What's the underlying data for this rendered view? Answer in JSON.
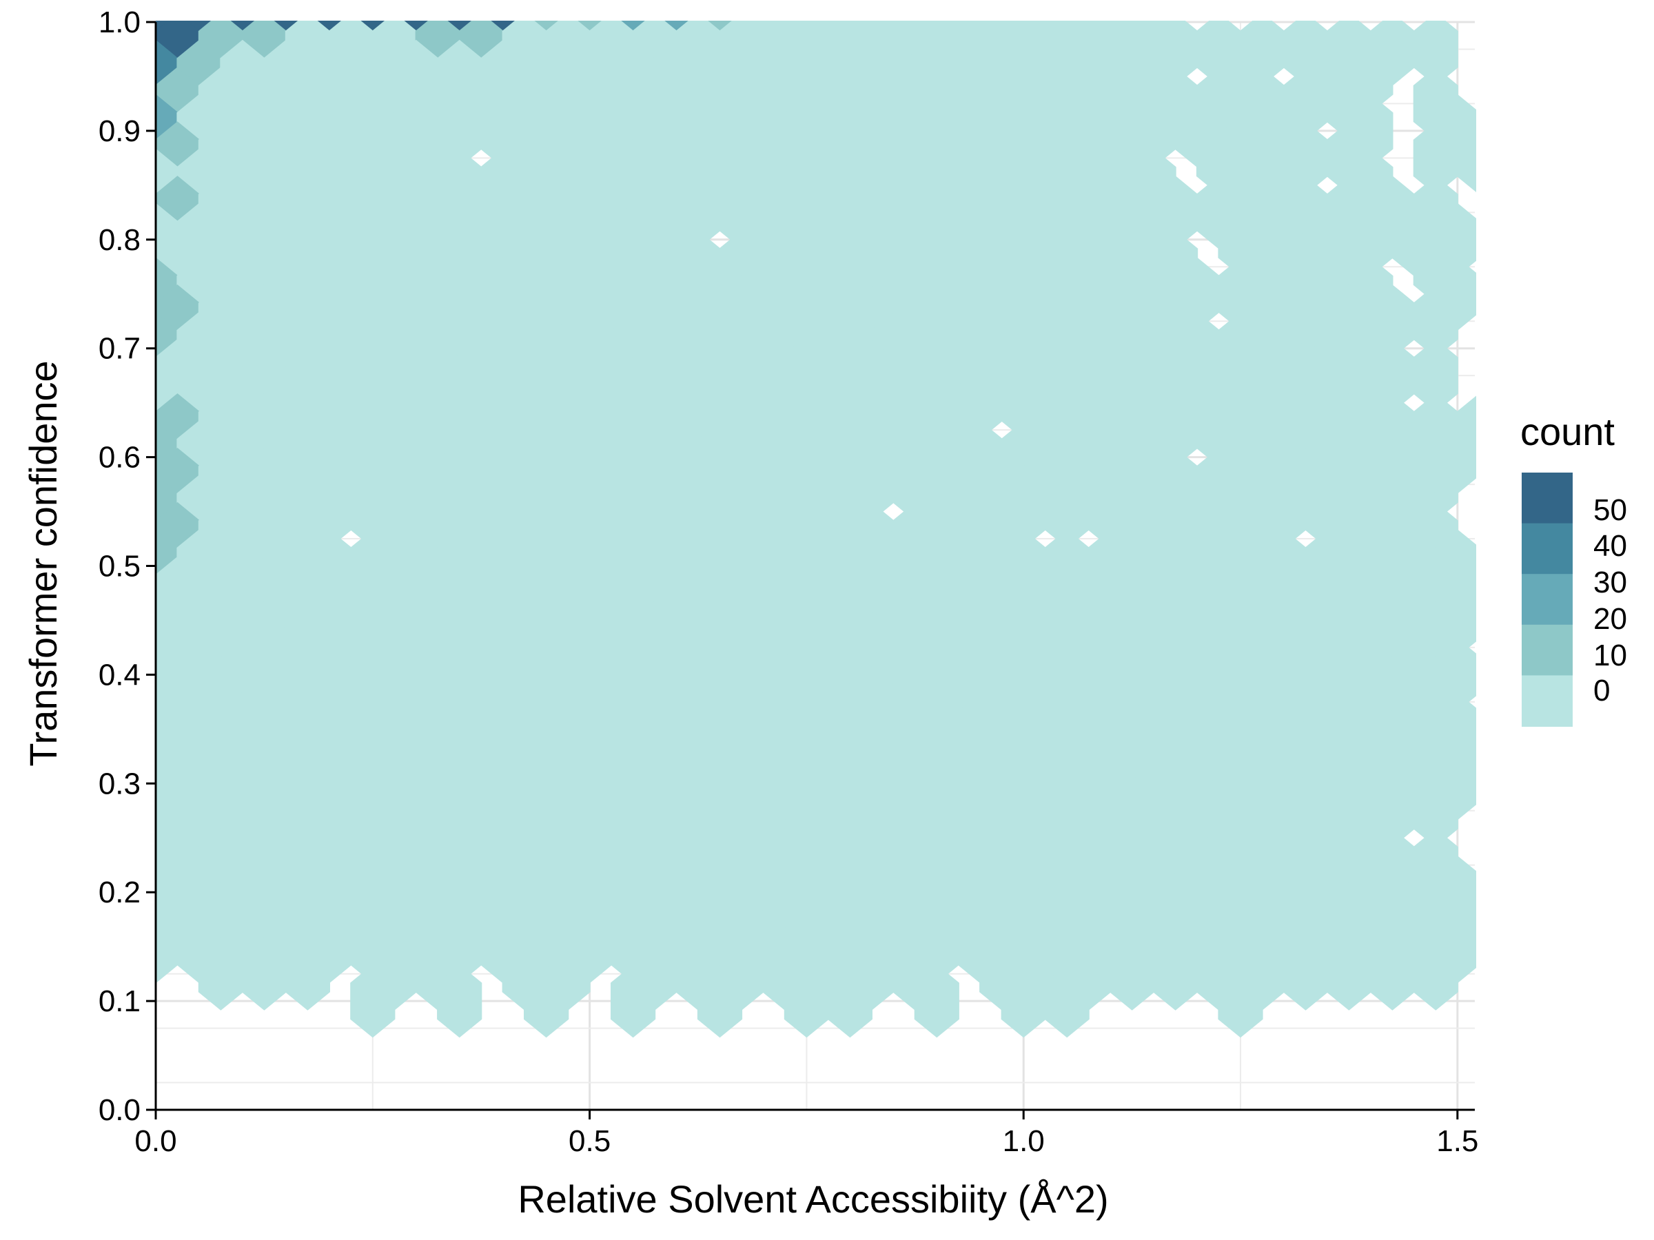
{
  "chart_data": {
    "type": "hexbin",
    "title": "",
    "xlabel": "Relative Solvent Accessibiity (Å^2)",
    "ylabel": "Transformer confidence",
    "xlim": [
      0.0,
      1.52
    ],
    "ylim": [
      0.0,
      1.0
    ],
    "x_ticks": [
      0.0,
      0.5,
      1.0,
      1.5
    ],
    "x_tick_labels": [
      "0.0",
      "0.5",
      "1.0",
      "1.5"
    ],
    "y_ticks": [
      0.0,
      0.1,
      0.2,
      0.3,
      0.4,
      0.5,
      0.6,
      0.7,
      0.8,
      0.9,
      1.0
    ],
    "y_tick_labels": [
      "0.0",
      "0.1",
      "0.2",
      "0.3",
      "0.4",
      "0.5",
      "0.6",
      "0.7",
      "0.8",
      "0.9",
      "1.0"
    ],
    "grid": true,
    "legend": {
      "title": "count",
      "position": "right",
      "breaks": [
        50,
        40,
        30,
        20,
        10,
        0
      ],
      "colors": [
        "#336688",
        "#4488a0",
        "#66aab8",
        "#8ec8c8",
        "#b8e4e2"
      ]
    },
    "hex_bins": {
      "x_bin_width": 0.05,
      "y_bin_width": 0.05,
      "colors": {
        "1": "#b8e4e2",
        "2": "#8ec8c8",
        "3": "#66aab8",
        "4": "#4488a0",
        "5": "#336688"
      },
      "levels_by_row": [
        {
          "y": 1.0,
          "cells": "55555555522332111111111100000000"
        },
        {
          "y": 0.975,
          "cells": "522111221111111111111111111111011"
        },
        {
          "y": 0.95,
          "cells": "42111111111111111111111101011000"
        },
        {
          "y": 0.925,
          "cells": "211111111111111111111111111101001"
        },
        {
          "y": 0.9,
          "cells": "31111111111111111111111111101011"
        },
        {
          "y": 0.875,
          "cells": "211111101111111111111110111101100"
        },
        {
          "y": 0.85,
          "cells": "11111111111111111111111101101000"
        },
        {
          "y": 0.825,
          "cells": "211111111111111111111111111111000"
        },
        {
          "y": 0.8,
          "cells": "11111111111110111111111101111110"
        },
        {
          "y": 0.775,
          "cells": "111111111111111111111111011101000"
        },
        {
          "y": 0.75,
          "cells": "21111111111111111111111111111010"
        },
        {
          "y": 0.725,
          "cells": "211111111111111111111111011111000"
        },
        {
          "y": 0.7,
          "cells": "21111111111111111111111111111000"
        },
        {
          "y": 0.675,
          "cells": "111111111111111111111111111111000"
        },
        {
          "y": 0.65,
          "cells": "11111111111111111111111111111000"
        },
        {
          "y": 0.625,
          "cells": "211111111111111111101111111111110"
        },
        {
          "y": 0.6,
          "cells": "21111111111111111111111101111111"
        },
        {
          "y": 0.575,
          "cells": "211111111111111111111111111111000"
        },
        {
          "y": 0.55,
          "cells": "21111111111111111011111111111100"
        },
        {
          "y": 0.525,
          "cells": "211101111111111111110011110111000"
        },
        {
          "y": 0.5,
          "cells": "21111111111111111111111111111110"
        },
        {
          "y": 0.475,
          "cells": "111111111111111111111111111111100"
        },
        {
          "y": 0.45,
          "cells": "11111111111111111111111111111110"
        },
        {
          "y": 0.425,
          "cells": "111111111111111111111111111111000"
        },
        {
          "y": 0.4,
          "cells": "11111111111111111111111111111110"
        },
        {
          "y": 0.375,
          "cells": "111111111111111111111111111111000"
        },
        {
          "y": 0.35,
          "cells": "11111111111111111111111111111110"
        },
        {
          "y": 0.325,
          "cells": "111111111111111111111111111111100"
        },
        {
          "y": 0.3,
          "cells": "11111111111111111111111111111110"
        },
        {
          "y": 0.275,
          "cells": "111111111111111111111111111111000"
        },
        {
          "y": 0.25,
          "cells": "11111111111111111111111111111000"
        },
        {
          "y": 0.225,
          "cells": "111111111111111111111111111111000"
        },
        {
          "y": 0.2,
          "cells": "11111111111111111111111111111110"
        },
        {
          "y": 0.175,
          "cells": "111111111111111111111111111111100"
        },
        {
          "y": 0.15,
          "cells": "11111111111111111111111111111110"
        },
        {
          "y": 0.125,
          "cells": "011101101101111111011111111111000"
        },
        {
          "y": 0.1,
          "cells": "00000101010101011010110001000000"
        }
      ]
    }
  }
}
